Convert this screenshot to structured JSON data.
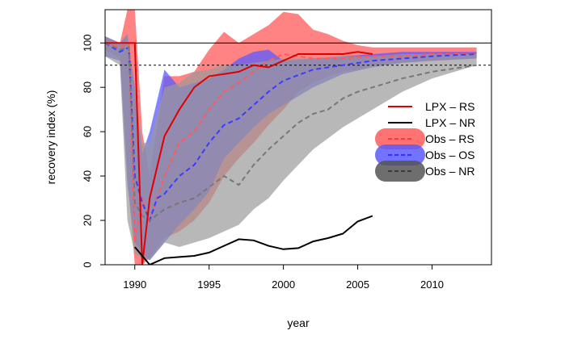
{
  "chart_data": {
    "type": "line",
    "xlabel": "year",
    "ylabel": "recovery index (%)",
    "xlim": [
      1988,
      2014
    ],
    "ylim": [
      0,
      115
    ],
    "x_ticks": [
      1990,
      1995,
      2000,
      2005,
      2010
    ],
    "y_ticks": [
      0,
      20,
      40,
      60,
      80,
      100
    ],
    "reference_lines": [
      {
        "y": 100,
        "style": "solid"
      },
      {
        "y": 90,
        "style": "dashed"
      }
    ],
    "legend_position": "right",
    "legend": [
      {
        "label": "LPX – RS",
        "color": "#e00000",
        "style": "solid"
      },
      {
        "label": "LPX – NR",
        "color": "#000000",
        "style": "solid"
      },
      {
        "label": "Obs – RS",
        "color": "#ff5a5a",
        "style": "dashed-band"
      },
      {
        "label": "Obs – OS",
        "color": "#5b5bff",
        "style": "dashed-band"
      },
      {
        "label": "Obs – NR",
        "color": "#555555",
        "style": "dashed-band"
      }
    ],
    "series": [
      {
        "name": "LPX – RS",
        "color": "#e00000",
        "style": "solid",
        "x": [
          1988,
          1989,
          1989.5,
          1990,
          1990.5,
          1991,
          1992,
          1993,
          1994,
          1995,
          1996,
          1997,
          1998,
          1999,
          2000,
          2001,
          2002,
          2003,
          2004,
          2005,
          2006
        ],
        "y": [
          100,
          100,
          100,
          100,
          0,
          30,
          58,
          70,
          80,
          85,
          86,
          87,
          90,
          89,
          92,
          95,
          95,
          95,
          95,
          96,
          95
        ]
      },
      {
        "name": "LPX – NR",
        "color": "#000000",
        "style": "solid",
        "x": [
          1990,
          1990.5,
          1991,
          1992,
          1993,
          1994,
          1995,
          1996,
          1997,
          1998,
          1999,
          2000,
          2001,
          2002,
          2003,
          2004,
          2005,
          2006
        ],
        "y": [
          8,
          4,
          0,
          3,
          3.5,
          4,
          5.5,
          8.5,
          11.5,
          11,
          8.5,
          7,
          7.5,
          10.5,
          12,
          14,
          19.5,
          22
        ]
      },
      {
        "name": "Obs – RS",
        "color": "#ff5a5a",
        "style": "dashed",
        "x": [
          1988,
          1989,
          1989.6,
          1990,
          1990.5,
          1991,
          1992,
          1993,
          1994,
          1995,
          1996,
          1997,
          1998,
          1999,
          2000,
          2001,
          2002,
          2004,
          2006,
          2008,
          2010,
          2013
        ],
        "y": [
          100,
          98,
          100,
          10,
          30,
          20,
          40,
          55,
          60,
          70,
          78,
          82,
          87,
          92,
          95,
          94,
          93,
          93,
          94,
          94,
          95,
          95
        ]
      },
      {
        "name": "Obs – OS",
        "color": "#3b3bff",
        "style": "dashed",
        "x": [
          1988,
          1989,
          1989.6,
          1990,
          1990.5,
          1991,
          1991.5,
          1992,
          1993,
          1994,
          1995,
          1996,
          1997,
          1998,
          1999,
          2000,
          2002,
          2004,
          2006,
          2008,
          2010,
          2013
        ],
        "y": [
          100,
          96,
          98,
          40,
          28,
          20,
          30,
          32,
          40,
          45,
          55,
          63,
          66,
          72,
          78,
          83,
          88,
          90,
          92,
          93,
          94,
          95
        ]
      },
      {
        "name": "Obs – NR",
        "color": "#777777",
        "style": "dashed",
        "x": [
          1988,
          1989,
          1989.6,
          1990,
          1990.5,
          1991,
          1992,
          1993,
          1994,
          1995,
          1996,
          1997,
          1998,
          1999,
          2000,
          2001,
          2002,
          2003,
          2004,
          2005,
          2006,
          2008,
          2010,
          2013
        ],
        "y": [
          100,
          97,
          98,
          28,
          22,
          20,
          25,
          28,
          30,
          35,
          40,
          36,
          45,
          52,
          58,
          64,
          68,
          70,
          75,
          78,
          80,
          84,
          87,
          90
        ]
      }
    ],
    "bands": [
      {
        "name": "Obs – RS",
        "color": "#ff5a5a",
        "opacity": 0.75,
        "x": [
          1988,
          1989,
          1989.5,
          1990,
          1990.5,
          1991,
          1992,
          1993,
          1994,
          1995,
          1996,
          1997,
          1998,
          1999,
          2000,
          2001,
          2002,
          2003,
          2004,
          2005,
          2006,
          2008,
          2010,
          2013
        ],
        "upper": [
          103,
          100,
          115,
          115,
          60,
          40,
          85,
          85,
          87,
          97,
          105,
          100,
          104,
          108,
          114,
          113,
          106,
          104,
          101,
          99,
          98,
          98,
          98,
          98
        ],
        "lower": [
          97,
          93,
          40,
          0,
          0,
          3,
          12,
          15,
          20,
          28,
          40,
          48,
          55,
          63,
          70,
          78,
          82,
          85,
          87,
          88,
          90,
          91,
          92,
          93
        ]
      },
      {
        "name": "Obs – OS",
        "color": "#5b5bff",
        "opacity": 0.75,
        "x": [
          1988,
          1989,
          1989.5,
          1990,
          1990.5,
          1991,
          1992,
          1993,
          1994,
          1995,
          1996,
          1997,
          1998,
          1999,
          2000,
          2002,
          2004,
          2006,
          2008,
          2010,
          2013
        ],
        "upper": [
          103,
          100,
          104,
          80,
          50,
          60,
          88,
          80,
          82,
          84,
          88,
          93,
          96,
          97,
          92,
          93,
          94,
          95,
          96,
          96,
          96
        ],
        "lower": [
          94,
          92,
          36,
          10,
          5,
          2,
          10,
          18,
          25,
          33,
          48,
          55,
          62,
          68,
          72,
          80,
          86,
          89,
          91,
          92,
          93
        ]
      },
      {
        "name": "Obs – NR",
        "color": "#9a9a9a",
        "opacity": 0.7,
        "x": [
          1988,
          1989,
          1989.5,
          1990,
          1990.5,
          1991,
          1992,
          1993,
          1994,
          1995,
          1996,
          1997,
          1998,
          1999,
          2000,
          2001,
          2002,
          2004,
          2006,
          2008,
          2010,
          2013
        ],
        "upper": [
          103,
          100,
          104,
          80,
          55,
          55,
          80,
          82,
          87,
          88,
          90,
          90,
          91,
          92,
          93,
          93,
          93,
          94,
          94,
          95,
          95,
          95
        ],
        "lower": [
          94,
          90,
          20,
          5,
          3,
          2,
          10,
          8,
          10,
          12,
          15,
          18,
          25,
          30,
          38,
          45,
          52,
          62,
          70,
          78,
          84,
          90
        ]
      }
    ]
  }
}
